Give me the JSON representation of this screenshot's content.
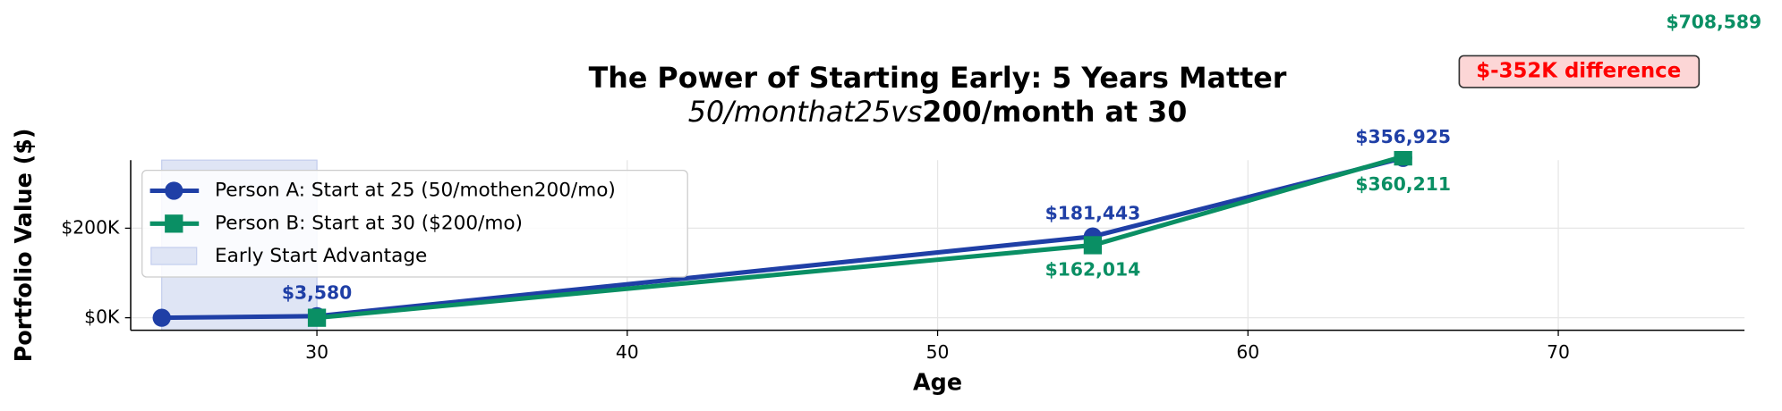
{
  "chart_data": {
    "type": "line",
    "title": "The Power of Starting Early: 5 Years Matter",
    "subtitle": [
      "50/monthat25vs",
      "200/month at 30"
    ],
    "xlabel": "Age",
    "ylabel": "Portfolio Value ($)",
    "x": [
      25,
      30,
      55,
      65
    ],
    "series": [
      {
        "name": "Person A: Start at 25 (50/mothen200/mo)",
        "color": "#1f3fa6",
        "marker": "circle",
        "values": [
          0,
          3580,
          181443,
          356925
        ],
        "value_labels": [
          null,
          "$3,580",
          "$181,443",
          "$356,925"
        ]
      },
      {
        "name": "Person B: Start at 30 ($200/mo)",
        "color": "#0a8f64",
        "marker": "square",
        "values": [
          null,
          0,
          162014,
          360211
        ],
        "value_labels": [
          null,
          null,
          "$162,014",
          "$360,211"
        ]
      }
    ],
    "shaded_region": {
      "name": "Early Start Advantage",
      "color": "#dfe5f5",
      "x": [
        25,
        30
      ]
    },
    "annotations": [
      "$708,589",
      "$-352K difference"
    ],
    "xlim": [
      24,
      76
    ],
    "xticks": [
      30,
      40,
      50,
      60,
      70
    ],
    "ylim": [
      -28000,
      352000
    ],
    "yticks": [
      {
        "value": 0,
        "label": "$0K"
      },
      {
        "value": 200000,
        "label": "$200K"
      }
    ],
    "grid": true,
    "legend": "upper left"
  }
}
